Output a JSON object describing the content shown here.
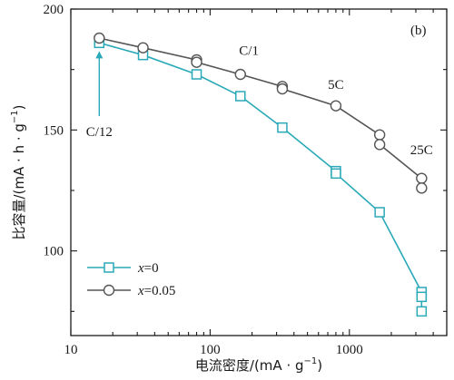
{
  "chart_data": {
    "type": "line",
    "panel_label": "(b)",
    "xlabel_text": "电流密度/(mA · g",
    "xlabel_sup": "−1",
    "xlabel_close": ")",
    "ylabel_text": "比容量/(mA · h · g",
    "ylabel_sup": "−1",
    "ylabel_close": ")",
    "xscale": "log",
    "xlim": [
      10,
      5000
    ],
    "ylim": [
      65,
      200
    ],
    "xticks": [
      10,
      100,
      1000
    ],
    "xtick_labels": [
      "10",
      "100",
      "1000"
    ],
    "yticks": [
      100,
      150,
      200
    ],
    "ytick_labels": [
      "100",
      "150",
      "200"
    ],
    "grid": false,
    "legend_position": "bottom-left",
    "series": [
      {
        "name": "x=0",
        "name_var": "x",
        "name_rest": "=0",
        "marker": "square",
        "color": "#2aa9b8",
        "x": [
          16,
          16,
          33,
          80,
          165,
          330,
          800,
          800,
          1650,
          3300,
          3300,
          3300
        ],
        "y": [
          187,
          186,
          181,
          173,
          164,
          151,
          133,
          132,
          116,
          83,
          81,
          75
        ]
      },
      {
        "name": "x=0.05",
        "name_var": "x",
        "name_rest": "=0.05",
        "marker": "circle",
        "color": "#555555",
        "x": [
          16,
          33,
          80,
          80,
          165,
          330,
          330,
          800,
          1650,
          1650,
          3300,
          3300
        ],
        "y": [
          188,
          184,
          179,
          178,
          173,
          168,
          167,
          160,
          148,
          144,
          130,
          126
        ]
      }
    ],
    "annotations": [
      {
        "text": "C/12",
        "x": 16,
        "y": 155
      },
      {
        "text": "C/1",
        "x": 190,
        "y": 181
      },
      {
        "text": "5C",
        "x": 800,
        "y": 167
      },
      {
        "text": "25C",
        "x": 3300,
        "y": 140
      }
    ]
  }
}
